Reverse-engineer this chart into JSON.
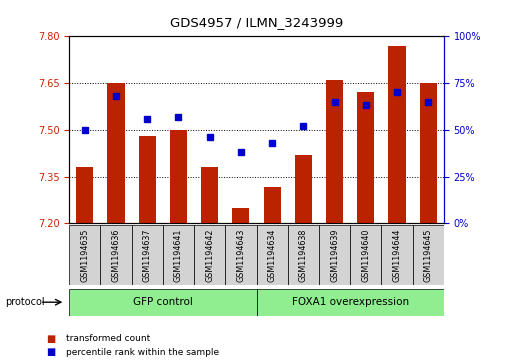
{
  "title": "GDS4957 / ILMN_3243999",
  "categories": [
    "GSM1194635",
    "GSM1194636",
    "GSM1194637",
    "GSM1194641",
    "GSM1194642",
    "GSM1194643",
    "GSM1194634",
    "GSM1194638",
    "GSM1194639",
    "GSM1194640",
    "GSM1194644",
    "GSM1194645"
  ],
  "bar_values": [
    7.38,
    7.65,
    7.48,
    7.5,
    7.38,
    7.25,
    7.315,
    7.42,
    7.66,
    7.62,
    7.77,
    7.65
  ],
  "percentile_values": [
    50,
    68,
    56,
    57,
    46,
    38,
    43,
    52,
    65,
    63,
    70,
    65
  ],
  "y_min": 7.2,
  "y_max": 7.8,
  "y_ticks": [
    7.2,
    7.35,
    7.5,
    7.65,
    7.8
  ],
  "y_right_ticks": [
    0,
    25,
    50,
    75,
    100
  ],
  "bar_color": "#bb2200",
  "percentile_color": "#0000cc",
  "bar_base": 7.2,
  "groups": [
    {
      "label": "GFP control",
      "start": 0,
      "end": 6,
      "color": "#90ee90"
    },
    {
      "label": "FOXA1 overexpression",
      "start": 6,
      "end": 12,
      "color": "#90ee90"
    }
  ],
  "legend_items": [
    {
      "label": "transformed count",
      "color": "#bb2200"
    },
    {
      "label": "percentile rank within the sample",
      "color": "#0000cc"
    }
  ],
  "protocol_label": "protocol",
  "background_color": "#ffffff",
  "tick_label_color_left": "#cc2200",
  "tick_label_color_right": "#0000cc",
  "xlabel_cell_color": "#d3d3d3",
  "grid_lines": [
    7.35,
    7.5,
    7.65
  ]
}
